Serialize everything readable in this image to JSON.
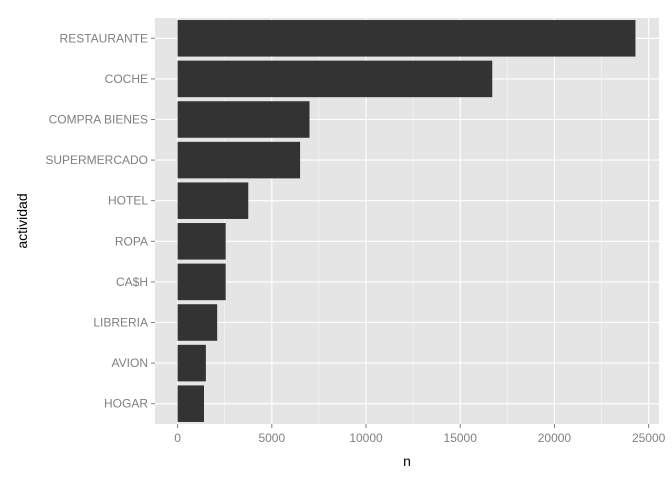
{
  "chart_data": {
    "type": "bar",
    "orientation": "horizontal",
    "title": "",
    "xlabel": "n",
    "ylabel": "actividad",
    "categories": [
      "RESTAURANTE",
      "COCHE",
      "COMPRA BIENES",
      "SUPERMERCADO",
      "HOTEL",
      "ROPA",
      "CA$H",
      "LIBRERIA",
      "AVION",
      "HOGAR"
    ],
    "values": [
      24300,
      16700,
      7000,
      6500,
      3750,
      2550,
      2550,
      2100,
      1500,
      1400
    ],
    "xlim": [
      -1200,
      25550
    ],
    "xticks": [
      0,
      5000,
      10000,
      15000,
      20000,
      25000
    ],
    "xtick_labels": [
      "0",
      "5000",
      "10000",
      "15000",
      "20000",
      "25000"
    ],
    "grid": true,
    "legend": "none",
    "colors": {
      "panel": "#e5e5e5",
      "grid_major": "#ffffff",
      "grid_minor": "#f2f2f2",
      "bar": "#333333",
      "tick_text": "#7f7f7f",
      "title_text": "#000000"
    }
  }
}
